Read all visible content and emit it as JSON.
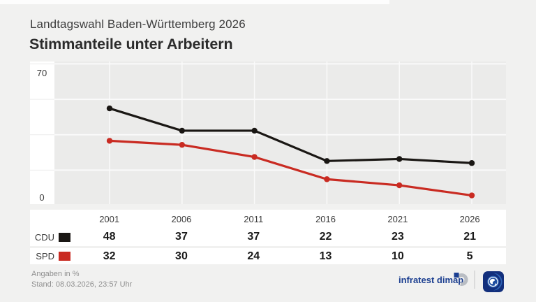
{
  "header": {
    "subtitle": "Landtagswahl Baden-Württemberg 2026",
    "title": "Stimmanteile unter Arbeitern"
  },
  "chart_data": {
    "type": "line",
    "categories": [
      "2001",
      "2006",
      "2011",
      "2016",
      "2021",
      "2026"
    ],
    "series": [
      {
        "name": "CDU",
        "color": "#1a1714",
        "values": [
          48,
          37,
          37,
          22,
          23,
          21
        ]
      },
      {
        "name": "SPD",
        "color": "#c92b22",
        "values": [
          32,
          30,
          24,
          13,
          10,
          5
        ]
      }
    ],
    "title": "Stimmanteile unter Arbeitern",
    "xlabel": "",
    "ylabel": "",
    "ylim": [
      0,
      70
    ],
    "y_axis_labels": {
      "top": "70",
      "bottom": "0"
    },
    "grid": true,
    "gridline_values": [
      17.5,
      35,
      52.5,
      70
    ],
    "legend_position": "table-left",
    "unit": "%"
  },
  "footer": {
    "note": "Angaben in %",
    "stand": "Stand: 08.03.2026, 23:57 Uhr",
    "source_label": "infratest dimap"
  },
  "colors": {
    "page_bg": "#f1f1f0",
    "plot_bg": "#ebebea",
    "grid_white": "#fafafa",
    "source_blue": "#1c3f90",
    "ard_navy": "#122f7c",
    "ard_swirl": "#2f64b5"
  }
}
